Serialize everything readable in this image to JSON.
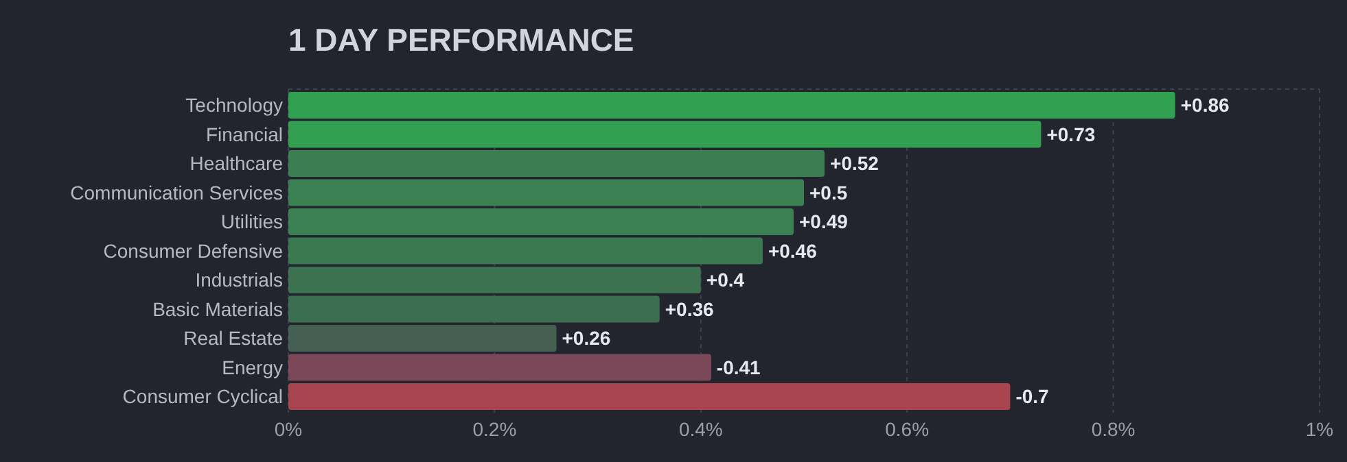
{
  "chart_data": {
    "type": "bar",
    "orientation": "horizontal",
    "title": "1 DAY PERFORMANCE",
    "categories": [
      "Technology",
      "Financial",
      "Healthcare",
      "Communication Services",
      "Utilities",
      "Consumer Defensive",
      "Industrials",
      "Basic Materials",
      "Real Estate",
      "Energy",
      "Consumer Cyclical"
    ],
    "values": [
      0.86,
      0.73,
      0.52,
      0.5,
      0.49,
      0.46,
      0.4,
      0.36,
      0.26,
      -0.41,
      -0.7
    ],
    "base": [
      0,
      0,
      0,
      0,
      0,
      0,
      0,
      0,
      0,
      0.41,
      0.7
    ],
    "value_labels": [
      "+0.86",
      "+0.73",
      "+0.52",
      "+0.5",
      "+0.49",
      "+0.46",
      "+0.4",
      "+0.36",
      "+0.26",
      "-0.41",
      "-0.7"
    ],
    "colors": [
      "#30a050",
      "#32a050",
      "#3a7e52",
      "#3a8052",
      "#3a8052",
      "#3b7a50",
      "#3c7250",
      "#3c6e50",
      "#456052",
      "#7a4858",
      "#a8444e"
    ],
    "xlim": [
      0,
      1
    ],
    "xticks": [
      {
        "value": 0,
        "label": "0%"
      },
      {
        "value": 0.2,
        "label": "0.2%"
      },
      {
        "value": 0.4,
        "label": "0.4%"
      },
      {
        "value": 0.6,
        "label": "0.6%"
      },
      {
        "value": 0.8,
        "label": "0.8%"
      },
      {
        "value": 1,
        "label": "1%"
      }
    ],
    "grid": "x"
  }
}
